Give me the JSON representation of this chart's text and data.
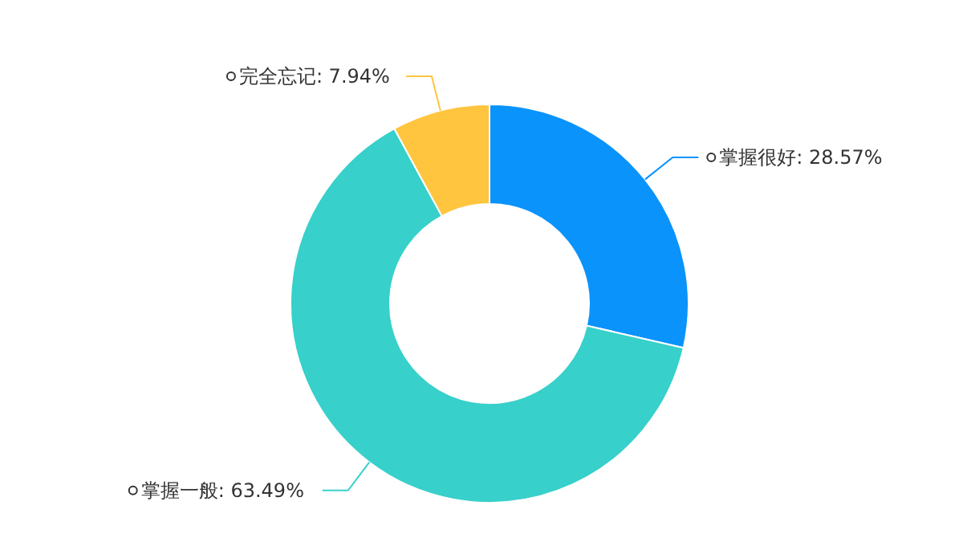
{
  "chart_data": {
    "type": "donut",
    "categories": [
      "掌握很好",
      "掌握一般",
      "完全忘记"
    ],
    "values": [
      28.57,
      63.49,
      7.94
    ],
    "value_labels": [
      "28.57%",
      "63.49%",
      "7.94%"
    ],
    "colors": [
      "#0a93fb",
      "#37d0ca",
      "#ffc53f"
    ],
    "legend": false
  }
}
